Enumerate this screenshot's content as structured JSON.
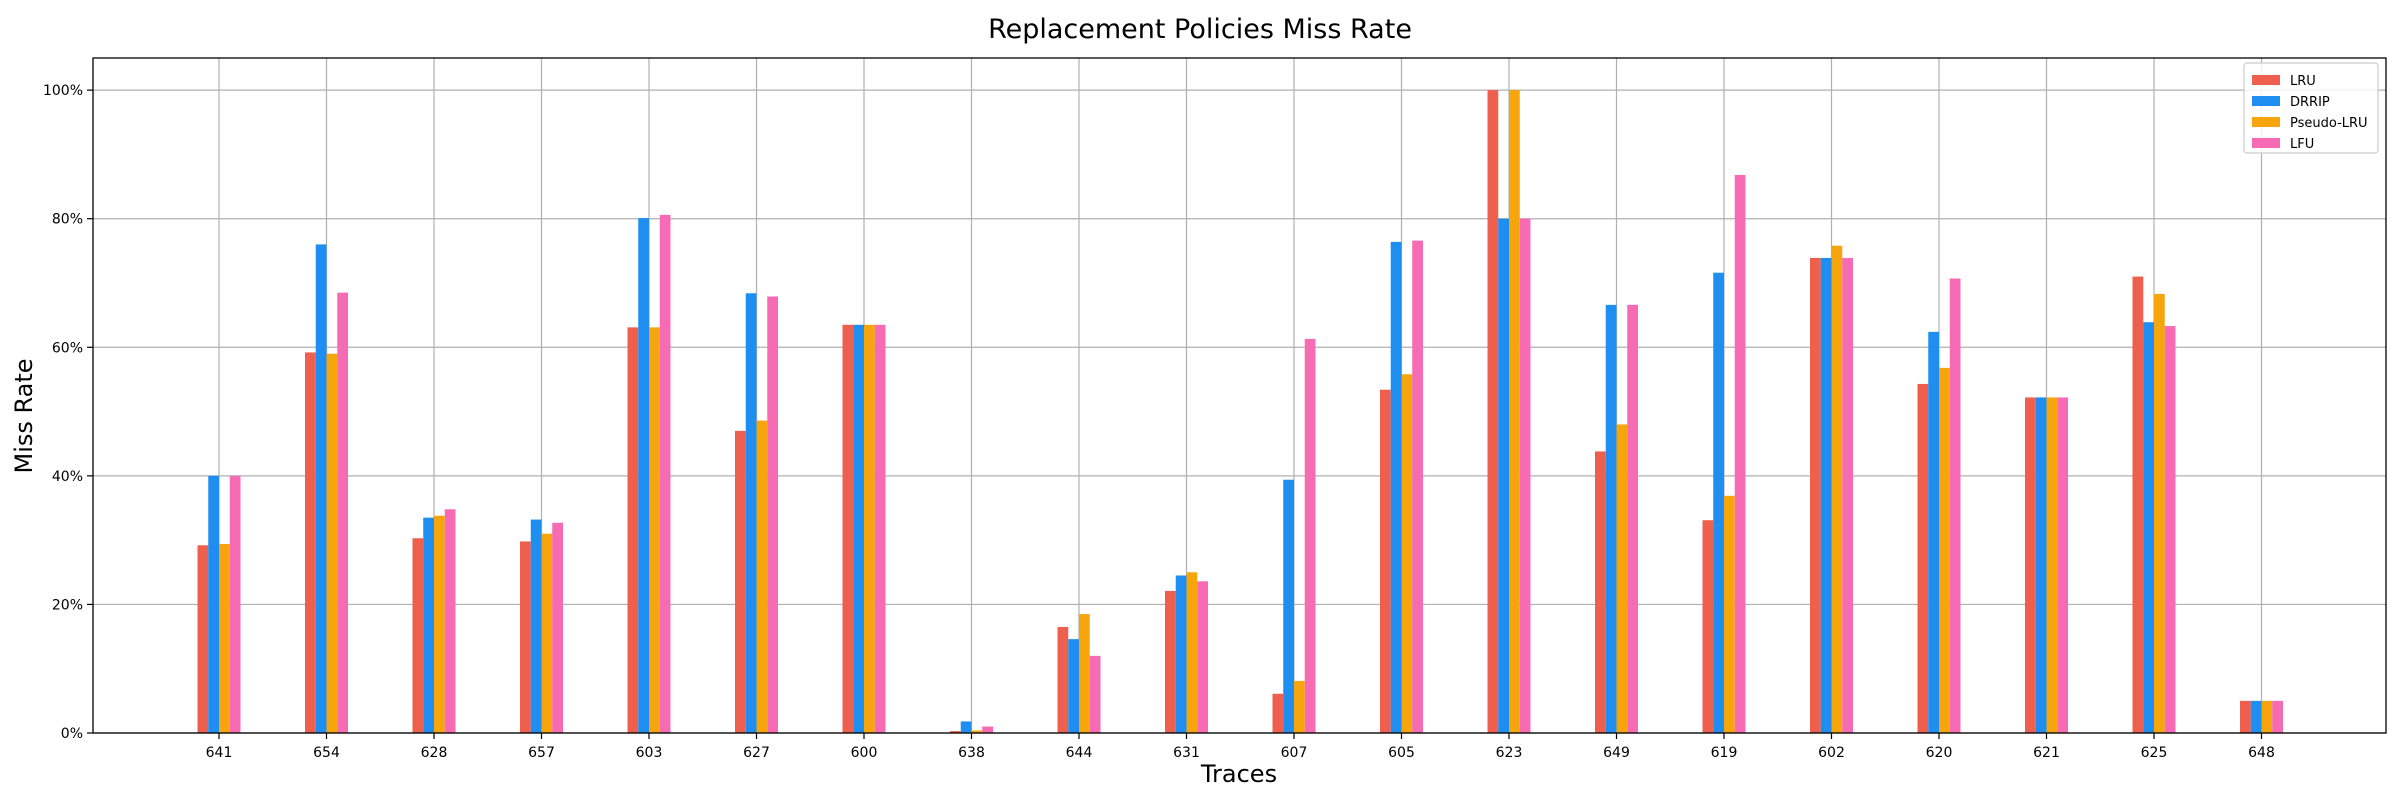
{
  "chart_data": {
    "type": "bar",
    "title": "Replacement Policies Miss Rate",
    "xlabel": "Traces",
    "ylabel": "Miss Rate",
    "categories": [
      "641",
      "654",
      "628",
      "657",
      "603",
      "627",
      "600",
      "638",
      "644",
      "631",
      "607",
      "605",
      "623",
      "649",
      "619",
      "602",
      "620",
      "621",
      "625",
      "648"
    ],
    "series": [
      {
        "name": "LRU",
        "color": "#ef5f4d",
        "values": [
          29.2,
          59.2,
          30.3,
          29.8,
          63.1,
          47.0,
          63.5,
          0.3,
          16.5,
          22.1,
          6.1,
          53.4,
          100.0,
          43.8,
          33.1,
          73.9,
          54.3,
          52.2,
          71.0,
          5.0
        ]
      },
      {
        "name": "DRRIP",
        "color": "#1f8ef1",
        "values": [
          40.0,
          76.0,
          33.5,
          33.2,
          80.1,
          68.4,
          63.5,
          1.8,
          14.6,
          24.5,
          39.4,
          76.4,
          80.0,
          66.6,
          71.6,
          73.9,
          62.4,
          52.2,
          63.9,
          5.0
        ]
      },
      {
        "name": "Pseudo-LRU",
        "color": "#f6a50d",
        "values": [
          29.4,
          59.0,
          33.8,
          31.0,
          63.1,
          48.6,
          63.5,
          0.4,
          18.5,
          25.0,
          8.1,
          55.8,
          100.0,
          48.0,
          36.9,
          75.8,
          56.8,
          52.2,
          68.3,
          5.0
        ]
      },
      {
        "name": "LFU",
        "color": "#f66bb4",
        "values": [
          40.0,
          68.5,
          34.8,
          32.7,
          80.6,
          67.9,
          63.5,
          1.0,
          12.0,
          23.6,
          61.3,
          76.6,
          80.0,
          66.6,
          86.8,
          73.9,
          70.7,
          52.2,
          63.3,
          5.0
        ]
      }
    ],
    "yticks": [
      "0%",
      "20%",
      "40%",
      "60%",
      "80%",
      "100%"
    ],
    "ytick_values": [
      0,
      20,
      40,
      60,
      80,
      100
    ],
    "ylim": [
      0,
      105
    ],
    "grid": true,
    "legend_position": "top-right"
  }
}
